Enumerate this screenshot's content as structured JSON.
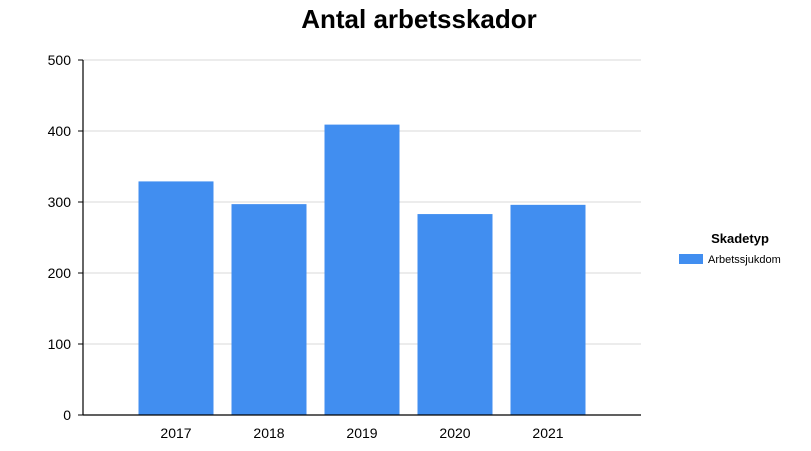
{
  "chart_data": {
    "type": "bar",
    "title": "Antal arbetsskador",
    "categories": [
      "2017",
      "2018",
      "2019",
      "2020",
      "2021"
    ],
    "series": [
      {
        "name": "Arbetssjukdom",
        "values": [
          329,
          297,
          409,
          283,
          296
        ],
        "color": "#418ef0"
      }
    ],
    "ylim": [
      0,
      500
    ],
    "yticks": [
      0,
      100,
      200,
      300,
      400,
      500
    ],
    "grid": true,
    "legend": {
      "title": "Skadetyp",
      "placement": "right"
    }
  }
}
